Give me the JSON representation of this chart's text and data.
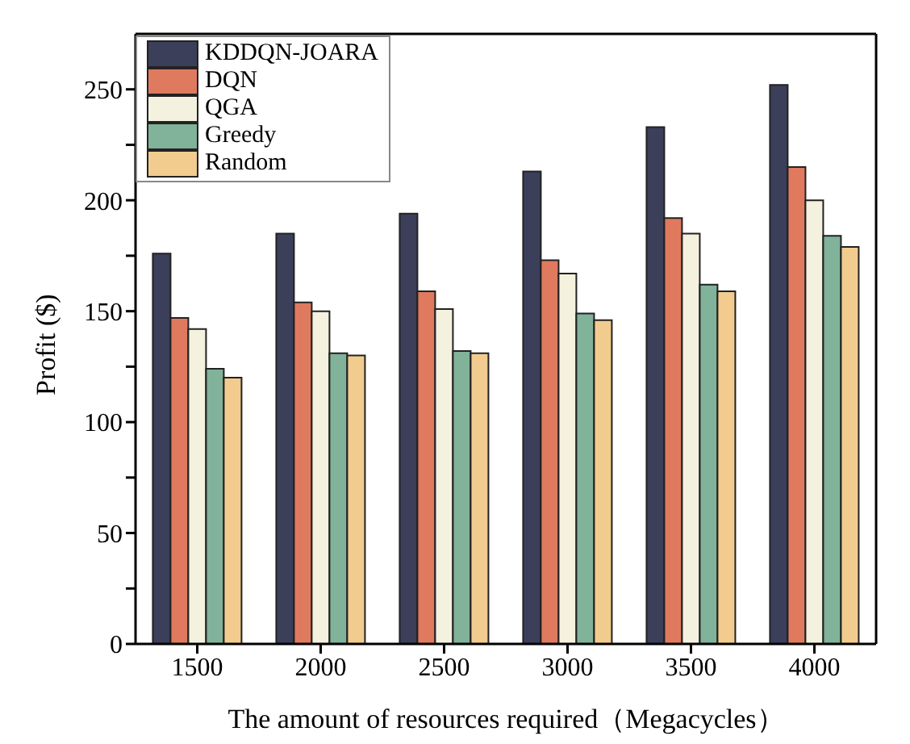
{
  "chart_data": {
    "type": "bar",
    "xlabel": "The amount of resources required（Megacycles）",
    "ylabel": "Profit ($)",
    "categories": [
      "1500",
      "2000",
      "2500",
      "3000",
      "3500",
      "4000"
    ],
    "series": [
      {
        "name": "KDDQN-JOARA",
        "color": "#3b3f5a",
        "values": [
          176,
          185,
          194,
          213,
          233,
          252
        ]
      },
      {
        "name": "DQN",
        "color": "#e07a5f",
        "values": [
          147,
          154,
          159,
          173,
          192,
          215
        ]
      },
      {
        "name": "QGA",
        "color": "#f4f1de",
        "values": [
          142,
          150,
          151,
          167,
          185,
          200
        ]
      },
      {
        "name": "Greedy",
        "color": "#81b29a",
        "values": [
          124,
          131,
          132,
          149,
          162,
          184
        ]
      },
      {
        "name": "Random",
        "color": "#f2cc8f",
        "values": [
          120,
          130,
          131,
          146,
          159,
          179
        ]
      }
    ],
    "ylim": [
      0,
      275
    ],
    "yticks": [
      0,
      {
        "value": 25,
        "label": null
      },
      50,
      {
        "value": 75,
        "label": null
      },
      100,
      {
        "value": 125,
        "label": null
      },
      150,
      {
        "value": 175,
        "label": null
      },
      200,
      {
        "value": 225,
        "label": null
      },
      250
    ],
    "grid": false,
    "legend": "top left"
  }
}
